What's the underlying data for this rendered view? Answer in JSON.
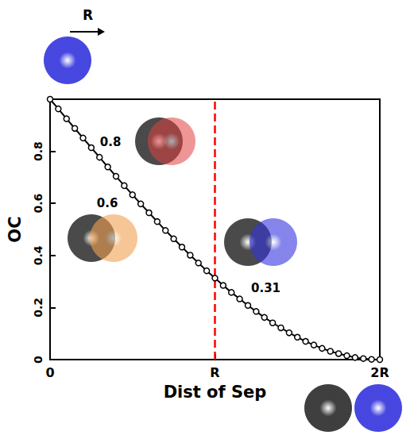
{
  "chart_data": {
    "type": "line",
    "x_label": "Dist of Sep",
    "y_label": "OC",
    "x": [
      0,
      0.05,
      0.1,
      0.15,
      0.2,
      0.25,
      0.3,
      0.35,
      0.4,
      0.45,
      0.5,
      0.55,
      0.6,
      0.65,
      0.7,
      0.75,
      0.8,
      0.85,
      0.9,
      0.95,
      1.0,
      1.05,
      1.1,
      1.15,
      1.2,
      1.25,
      1.3,
      1.35,
      1.4,
      1.45,
      1.5,
      1.55,
      1.6,
      1.65,
      1.7,
      1.75,
      1.8,
      1.85,
      1.9,
      1.95,
      2.0
    ],
    "values": [
      1.0,
      0.963,
      0.925,
      0.888,
      0.851,
      0.814,
      0.777,
      0.74,
      0.704,
      0.668,
      0.633,
      0.598,
      0.564,
      0.53,
      0.496,
      0.464,
      0.432,
      0.401,
      0.371,
      0.341,
      0.313,
      0.285,
      0.258,
      0.233,
      0.208,
      0.185,
      0.162,
      0.141,
      0.122,
      0.103,
      0.086,
      0.07,
      0.056,
      0.043,
      0.032,
      0.023,
      0.015,
      0.008,
      0.004,
      0.001,
      0.0
    ],
    "color": "#000000",
    "marker": "circle",
    "xlim": [
      0,
      2
    ],
    "xticks": [
      0,
      {
        "value": 1,
        "label": "R"
      },
      {
        "value": 2,
        "label": "2R"
      }
    ],
    "ylim": [
      0,
      1
    ],
    "yticks": [
      0,
      0.2,
      0.4,
      0.6,
      0.8
    ],
    "grid": false,
    "reference_line": {
      "x": 1,
      "color": "#ff0000",
      "line_style": "dashed"
    },
    "annotations": [
      {
        "text": "R"
      },
      {
        "text": "0.8",
        "x": 0.27,
        "y": 0.8
      },
      {
        "text": "0.6",
        "x": 0.55,
        "y": 0.6
      },
      {
        "text": "0.31",
        "x": 1,
        "y": 0.31
      }
    ]
  }
}
